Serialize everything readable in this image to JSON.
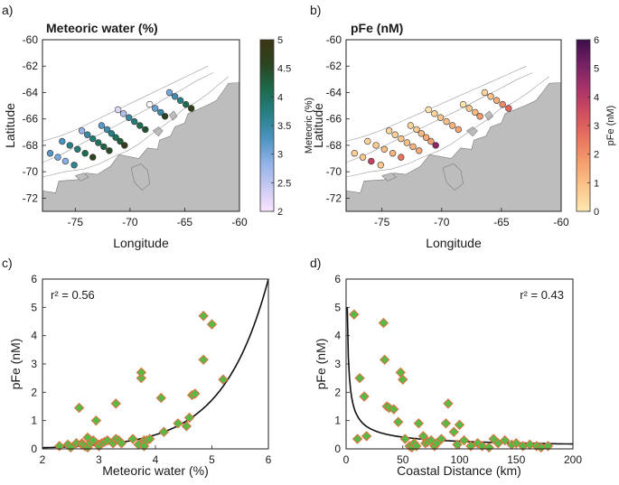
{
  "chart_data": [
    {
      "panel": "a)",
      "type": "scatter",
      "title": "Meteoric water (%)",
      "xlabel": "Longitude",
      "ylabel": "Latitude",
      "xlim": [
        -78,
        -60
      ],
      "ylim": [
        -73,
        -60
      ],
      "xticks": [
        "-75",
        "-70",
        "-65",
        "-60"
      ],
      "yticks": [
        "-60",
        "-62",
        "-64",
        "-66",
        "-68",
        "-70",
        "-72"
      ],
      "colorbar": {
        "label": "Meteoric (%)",
        "range": [
          2,
          5
        ],
        "ticks": [
          "2",
          "2.5",
          "3",
          "3.5",
          "4",
          "4.5",
          "5"
        ],
        "colors": [
          "#fbe3ff",
          "#c8c9f2",
          "#8fb1e6",
          "#4a93bf",
          "#267f83",
          "#1c6a4c",
          "#2b4420",
          "#3d3512"
        ]
      },
      "stations": [
        {
          "lon": -77.3,
          "lat": -68.6,
          "value": 3.2
        },
        {
          "lon": -76.6,
          "lat": -68.9,
          "value": 3.0
        },
        {
          "lon": -75.9,
          "lat": -69.2,
          "value": 2.9
        },
        {
          "lon": -75.1,
          "lat": -69.5,
          "value": 3.6
        },
        {
          "lon": -76.2,
          "lat": -67.7,
          "value": 3.3
        },
        {
          "lon": -75.5,
          "lat": -68.0,
          "value": 3.7
        },
        {
          "lon": -74.8,
          "lat": -68.3,
          "value": 3.8
        },
        {
          "lon": -74.1,
          "lat": -68.6,
          "value": 4.1
        },
        {
          "lon": -73.4,
          "lat": -68.9,
          "value": 4.6
        },
        {
          "lon": -74.4,
          "lat": -66.9,
          "value": 2.8
        },
        {
          "lon": -73.9,
          "lat": -67.2,
          "value": 3.5
        },
        {
          "lon": -73.4,
          "lat": -67.5,
          "value": 3.8
        },
        {
          "lon": -72.9,
          "lat": -67.8,
          "value": 4.0
        },
        {
          "lon": -72.4,
          "lat": -68.1,
          "value": 4.2
        },
        {
          "lon": -71.9,
          "lat": -68.4,
          "value": 4.5
        },
        {
          "lon": -72.6,
          "lat": -66.5,
          "value": 3.2
        },
        {
          "lon": -72.1,
          "lat": -66.8,
          "value": 3.4
        },
        {
          "lon": -71.7,
          "lat": -67.1,
          "value": 3.7
        },
        {
          "lon": -71.3,
          "lat": -67.4,
          "value": 4.0
        },
        {
          "lon": -70.9,
          "lat": -67.7,
          "value": 4.3
        },
        {
          "lon": -70.5,
          "lat": -68.0,
          "value": 4.8
        },
        {
          "lon": -71.1,
          "lat": -65.3,
          "value": 2.2
        },
        {
          "lon": -70.6,
          "lat": -65.6,
          "value": 2.6
        },
        {
          "lon": -70.1,
          "lat": -65.9,
          "value": 3.5
        },
        {
          "lon": -69.6,
          "lat": -66.2,
          "value": 3.8
        },
        {
          "lon": -69.1,
          "lat": -66.5,
          "value": 4.1
        },
        {
          "lon": -68.6,
          "lat": -66.8,
          "value": 4.4
        },
        {
          "lon": -68.2,
          "lat": -64.9,
          "value": 1.9
        },
        {
          "lon": -67.7,
          "lat": -65.2,
          "value": 3.1
        },
        {
          "lon": -67.2,
          "lat": -65.5,
          "value": 3.5
        },
        {
          "lon": -66.8,
          "lat": -65.8,
          "value": 4.6
        },
        {
          "lon": -66.4,
          "lat": -64.0,
          "value": 3.0
        },
        {
          "lon": -65.9,
          "lat": -64.3,
          "value": 3.4
        },
        {
          "lon": -65.4,
          "lat": -64.6,
          "value": 3.7
        },
        {
          "lon": -64.9,
          "lat": -64.9,
          "value": 4.1
        },
        {
          "lon": -64.4,
          "lat": -65.2,
          "value": 4.7
        }
      ]
    },
    {
      "panel": "b)",
      "type": "scatter",
      "title": "pFe (nM)",
      "xlabel": "Longitude",
      "ylabel": "Latitude",
      "xlim": [
        -78,
        -60
      ],
      "ylim": [
        -73,
        -60
      ],
      "xticks": [
        "-75",
        "-70",
        "-65",
        "-60"
      ],
      "yticks": [
        "-60",
        "-62",
        "-64",
        "-66",
        "-68",
        "-70",
        "-72"
      ],
      "colorbar": {
        "label": "pFe (nM)",
        "range": [
          0,
          6
        ],
        "ticks": [
          "0",
          "1",
          "2",
          "3",
          "4",
          "5",
          "6"
        ],
        "colors": [
          "#fee8b0",
          "#fcc58a",
          "#f59e6d",
          "#e8735f",
          "#d04e5e",
          "#a9336a",
          "#762165",
          "#3e0e4a"
        ]
      },
      "stations": [
        {
          "lon": -77.3,
          "lat": -68.6,
          "value": 0.6
        },
        {
          "lon": -76.6,
          "lat": -68.9,
          "value": 0.8
        },
        {
          "lon": -75.9,
          "lat": -69.2,
          "value": 3.8
        },
        {
          "lon": -75.1,
          "lat": -69.5,
          "value": 0.7
        },
        {
          "lon": -76.2,
          "lat": -67.7,
          "value": 0.5
        },
        {
          "lon": -75.5,
          "lat": -68.0,
          "value": 0.7
        },
        {
          "lon": -74.8,
          "lat": -68.3,
          "value": 1.0
        },
        {
          "lon": -74.1,
          "lat": -68.6,
          "value": 1.2
        },
        {
          "lon": -73.4,
          "lat": -68.9,
          "value": 2.5
        },
        {
          "lon": -74.4,
          "lat": -66.9,
          "value": 0.4
        },
        {
          "lon": -73.9,
          "lat": -67.2,
          "value": 0.6
        },
        {
          "lon": -73.4,
          "lat": -67.5,
          "value": 0.8
        },
        {
          "lon": -72.9,
          "lat": -67.8,
          "value": 1.0
        },
        {
          "lon": -72.4,
          "lat": -68.1,
          "value": 1.3
        },
        {
          "lon": -71.9,
          "lat": -68.4,
          "value": 1.5
        },
        {
          "lon": -72.6,
          "lat": -66.5,
          "value": 0.5
        },
        {
          "lon": -72.1,
          "lat": -66.8,
          "value": 0.7
        },
        {
          "lon": -71.7,
          "lat": -67.1,
          "value": 1.1
        },
        {
          "lon": -71.3,
          "lat": -67.4,
          "value": 1.4
        },
        {
          "lon": -70.9,
          "lat": -67.7,
          "value": 1.7
        },
        {
          "lon": -70.5,
          "lat": -68.0,
          "value": 4.8
        },
        {
          "lon": -71.1,
          "lat": -65.3,
          "value": 0.1
        },
        {
          "lon": -70.6,
          "lat": -65.6,
          "value": 0.5
        },
        {
          "lon": -70.1,
          "lat": -65.9,
          "value": 0.8
        },
        {
          "lon": -69.6,
          "lat": -66.2,
          "value": 1.0
        },
        {
          "lon": -69.1,
          "lat": -66.5,
          "value": 1.3
        },
        {
          "lon": -68.6,
          "lat": -66.8,
          "value": 1.6
        },
        {
          "lon": -68.2,
          "lat": -64.9,
          "value": 0.05
        },
        {
          "lon": -67.7,
          "lat": -65.2,
          "value": 0.8
        },
        {
          "lon": -67.2,
          "lat": -65.5,
          "value": 1.1
        },
        {
          "lon": -66.8,
          "lat": -65.8,
          "value": 1.8
        },
        {
          "lon": -66.4,
          "lat": -64.0,
          "value": 0.5
        },
        {
          "lon": -65.9,
          "lat": -64.3,
          "value": 0.9
        },
        {
          "lon": -65.4,
          "lat": -64.6,
          "value": 1.4
        },
        {
          "lon": -64.9,
          "lat": -64.9,
          "value": 2.1
        },
        {
          "lon": -64.4,
          "lat": -65.2,
          "value": 2.9
        }
      ]
    },
    {
      "panel": "c)",
      "type": "scatter",
      "xlabel": "Meteoric water (%)",
      "ylabel": "pFe (nM)",
      "xlim": [
        2,
        6
      ],
      "ylim": [
        0,
        6
      ],
      "xticks": [
        "2",
        "3",
        "4",
        "5",
        "6"
      ],
      "yticks": [
        "0",
        "1",
        "2",
        "3",
        "4",
        "5",
        "6"
      ],
      "annotation": "r² = 0.56",
      "fit": {
        "form": "exponential",
        "a": 0.00342,
        "b": 1.245
      },
      "x": [
        2.3,
        2.45,
        2.5,
        2.6,
        2.65,
        2.7,
        2.7,
        2.75,
        2.8,
        2.8,
        2.85,
        2.9,
        2.95,
        3.0,
        3.0,
        3.05,
        3.1,
        3.15,
        3.25,
        3.3,
        3.3,
        3.35,
        3.4,
        3.6,
        3.7,
        3.75,
        3.75,
        3.8,
        3.8,
        3.85,
        3.9,
        4.1,
        4.15,
        4.4,
        4.55,
        4.6,
        4.65,
        4.7,
        4.85,
        4.85,
        5.0,
        5.2
      ],
      "y": [
        0.1,
        0.15,
        0.05,
        0.2,
        1.45,
        0.2,
        0.15,
        0.1,
        0.4,
        0.05,
        0.2,
        0.3,
        1.0,
        0.15,
        0.1,
        0.2,
        0.25,
        0.3,
        0.2,
        0.35,
        1.6,
        0.3,
        0.2,
        0.35,
        0.15,
        2.5,
        2.7,
        0.3,
        0.1,
        0.3,
        0.35,
        1.8,
        0.6,
        0.9,
        0.8,
        1.1,
        1.9,
        1.95,
        4.7,
        3.15,
        4.4,
        2.45
      ],
      "marker": {
        "fill": "#59b947",
        "edge": "#e0703f"
      },
      "line_color": "#111111"
    },
    {
      "panel": "d)",
      "type": "scatter",
      "xlabel": "Coastal Distance (km)",
      "ylabel": "pFe (nM)",
      "xlim": [
        0,
        200
      ],
      "ylim": [
        0,
        6
      ],
      "xticks": [
        "0",
        "50",
        "100",
        "150",
        "200"
      ],
      "yticks": [
        "0",
        "1",
        "2",
        "3",
        "4",
        "5",
        "6"
      ],
      "annotation": "r² = 0.43",
      "fit": {
        "form": "power",
        "a": 5.0,
        "b": 0.636
      },
      "x": [
        7,
        10,
        12,
        16,
        18,
        33,
        34,
        36,
        38,
        42,
        46,
        48,
        50,
        52,
        56,
        58,
        60,
        62,
        64,
        68,
        70,
        72,
        75,
        78,
        80,
        84,
        88,
        90,
        95,
        98,
        100,
        104,
        110,
        116,
        120,
        126,
        130,
        134,
        140,
        146,
        150,
        156,
        162,
        168,
        172,
        178
      ],
      "y": [
        4.75,
        0.35,
        2.5,
        1.85,
        0.45,
        4.45,
        3.15,
        1.5,
        1.45,
        1.4,
        0.95,
        2.7,
        2.45,
        0.35,
        0.1,
        0.05,
        0.2,
        0.1,
        0.9,
        0.45,
        0.2,
        0.25,
        0.3,
        0.1,
        0.2,
        0.35,
        0.9,
        1.6,
        0.6,
        0.15,
        0.85,
        0.3,
        0.1,
        0.2,
        0.1,
        0.05,
        0.35,
        0.2,
        0.3,
        0.15,
        0.2,
        0.1,
        0.15,
        0.1,
        0.05,
        0.1
      ],
      "marker": {
        "fill": "#59b947",
        "edge": "#e0703f"
      },
      "line_color": "#111111"
    }
  ]
}
